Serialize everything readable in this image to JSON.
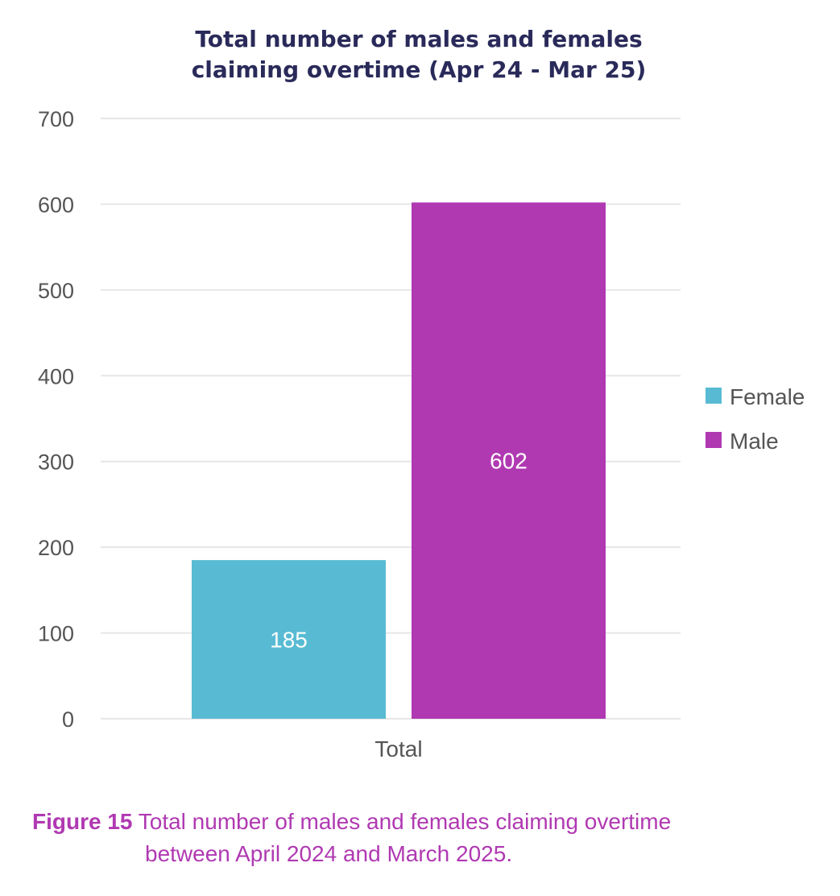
{
  "chart_data": {
    "type": "bar",
    "title_lines": [
      "Total number of males and females",
      "claiming overtime (Apr 24 - Mar 25)"
    ],
    "categories": [
      "Total"
    ],
    "series": [
      {
        "name": "Female",
        "values": [
          185
        ],
        "color": "#58bbd3"
      },
      {
        "name": "Male",
        "values": [
          602
        ],
        "color": "#b039b2"
      }
    ],
    "ylim": [
      0,
      700
    ],
    "yticks": [
      0,
      100,
      200,
      300,
      400,
      500,
      600,
      700
    ],
    "grid": true,
    "legend_position": "right",
    "data_labels": true
  },
  "caption": {
    "prefix": "Figure 15",
    "line1": " Total number of males and females claiming overtime",
    "line2": "between April 2024 and March 2025."
  }
}
